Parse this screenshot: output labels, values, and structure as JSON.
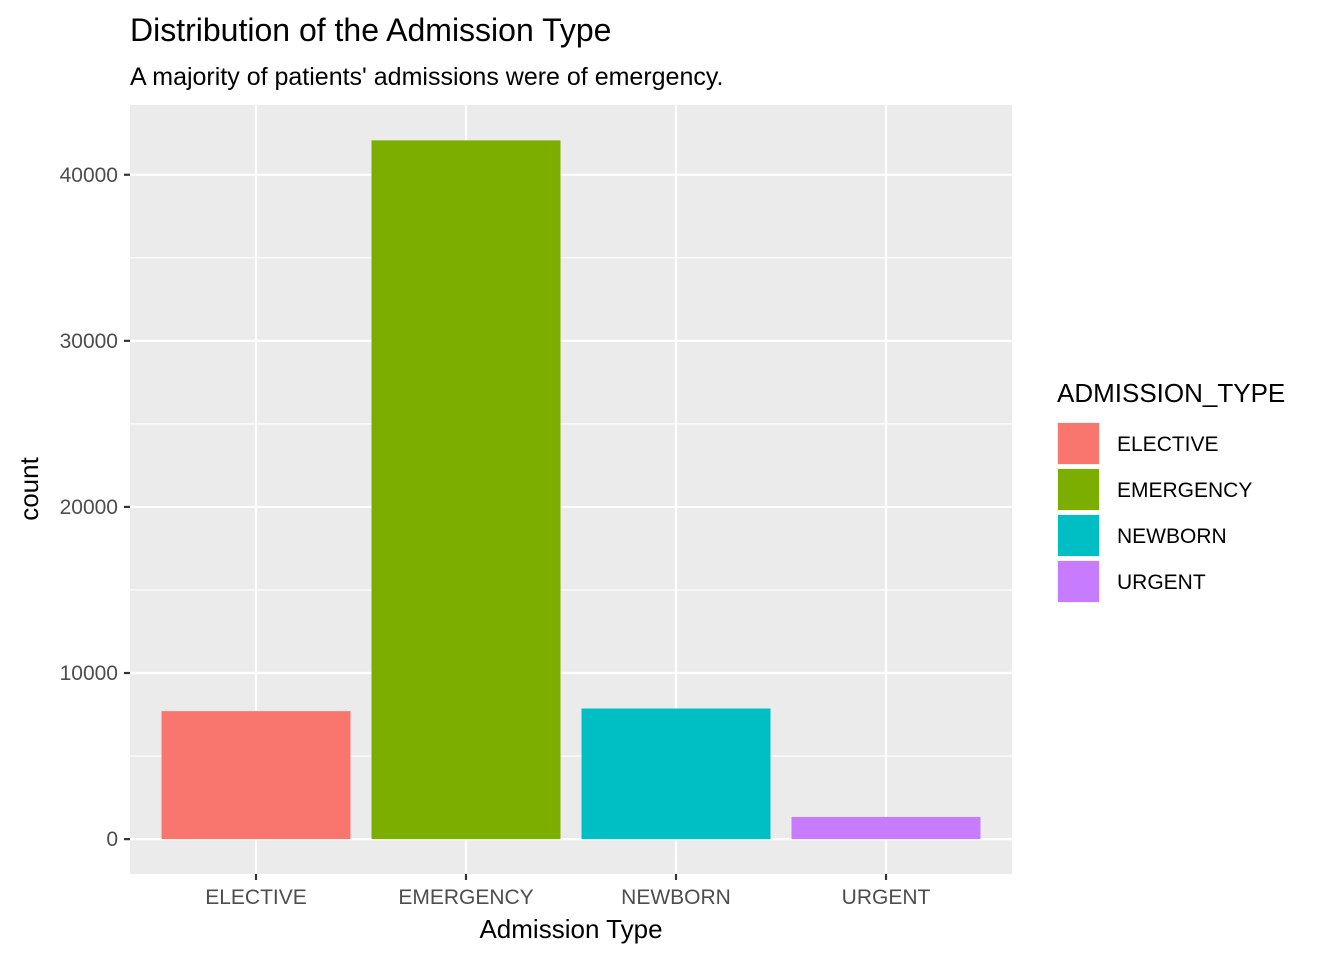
{
  "chart_data": {
    "type": "bar",
    "title": "Distribution of the Admission Type",
    "subtitle": "A majority of patients' admissions were of emergency.",
    "xlabel": "Admission Type",
    "ylabel": "count",
    "categories": [
      "ELECTIVE",
      "EMERGENCY",
      "NEWBORN",
      "URGENT"
    ],
    "values": [
      7706,
      42071,
      7863,
      1336
    ],
    "colors": [
      "#F8766D",
      "#7CAE00",
      "#00BFC4",
      "#C77CFF"
    ],
    "ylim": [
      -2100,
      44200
    ],
    "yticks": [
      0,
      10000,
      20000,
      30000,
      40000
    ],
    "ytick_labels": [
      "0",
      "10000",
      "20000",
      "30000",
      "40000"
    ],
    "grid": true,
    "panel_background": "#EBEBEB",
    "legend": {
      "title": "ADMISSION_TYPE",
      "placement": "right",
      "items": [
        "ELECTIVE",
        "EMERGENCY",
        "NEWBORN",
        "URGENT"
      ]
    }
  }
}
